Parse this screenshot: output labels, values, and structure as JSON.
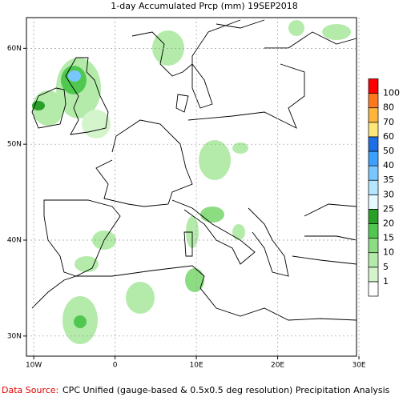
{
  "chart_data": {
    "type": "map",
    "title": "1-day Accumulated Prcp (mm) 19SEP2018",
    "xlim": [
      -10.9,
      29.7
    ],
    "ylim": [
      27.9,
      63.2
    ],
    "xticks": [
      {
        "value": -10,
        "label": "10W"
      },
      0,
      {
        "value": 10,
        "label": "10E"
      },
      {
        "value": 20,
        "label": "20E"
      },
      {
        "value": 30,
        "label": "30E"
      }
    ],
    "yticks": [
      {
        "value": 30,
        "label": "30N"
      },
      {
        "value": 40,
        "label": "40N"
      },
      {
        "value": 50,
        "label": "50N"
      },
      {
        "value": 60,
        "label": "60N"
      }
    ],
    "grid": true,
    "colorbar": {
      "levels": [
        1,
        5,
        10,
        15,
        20,
        25,
        30,
        35,
        40,
        50,
        60,
        70,
        80,
        100
      ],
      "colors": [
        "#ffffff",
        "#d4f5cc",
        "#b4ebaa",
        "#8cdc82",
        "#50c850",
        "#28a028",
        "#e6faff",
        "#b4e6ff",
        "#78c8ff",
        "#3ca0ff",
        "#1e6ee6",
        "#ffe678",
        "#ffb43c",
        "#ff781e",
        "#ff0000"
      ]
    },
    "source_label": "Data Source:",
    "source_text": "CPC Unified (gauge-based & 0.5x0.5 deg resolution) Precipitation Analysis"
  }
}
